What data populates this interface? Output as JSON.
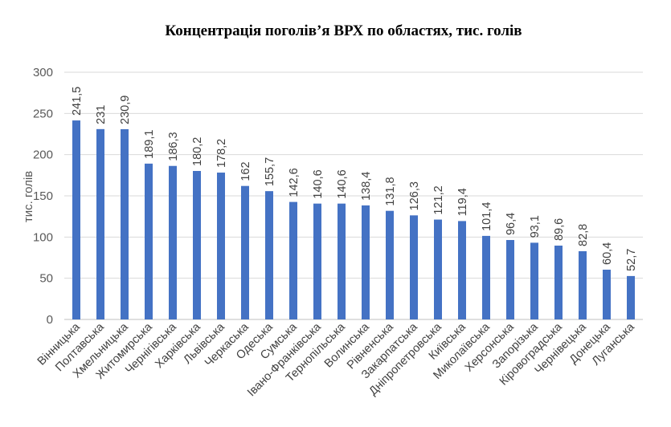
{
  "chart_data": {
    "type": "bar",
    "title": "Концентрація поголів’я ВРХ  по областях, тис. голів",
    "xlabel": "",
    "ylabel": "тис. голів",
    "ylim": [
      0,
      300
    ],
    "yticks": [
      0,
      50,
      100,
      150,
      200,
      250,
      300
    ],
    "grid": true,
    "legend": "none",
    "bar_color": "#4472C4",
    "categories": [
      "Вінницька",
      "Полтавська",
      "Хмельницька",
      "Житомирська",
      "Чернігівська",
      "Харківська",
      "Львівська",
      "Черкаська",
      "Одеська",
      "Сумська",
      "Івано-Франківська",
      "Тернопільська",
      "Волинська",
      "Рівненська",
      "Закарпатська",
      "Дніпропетровська",
      "Київська",
      "Миколаївська",
      "Херсонська",
      "Запорізька",
      "Кіровоградська",
      "Чернівецька",
      "Донецька",
      "Луганська"
    ],
    "values": [
      241.5,
      231,
      230.9,
      189.1,
      186.3,
      180.2,
      178.2,
      162,
      155.7,
      142.6,
      140.6,
      140.6,
      138.4,
      131.8,
      126.3,
      121.2,
      119.4,
      101.4,
      96.4,
      93.1,
      89.6,
      82.8,
      60.4,
      52.7
    ],
    "value_labels": [
      "241,5",
      "231",
      "230,9",
      "189,1",
      "186,3",
      "180,2",
      "178,2",
      "162",
      "155,7",
      "142,6",
      "140,6",
      "140,6",
      "138,4",
      "131,8",
      "126,3",
      "121,2",
      "119,4",
      "101,4",
      "96,4",
      "93,1",
      "89,6",
      "82,8",
      "60,4",
      "52,7"
    ]
  }
}
